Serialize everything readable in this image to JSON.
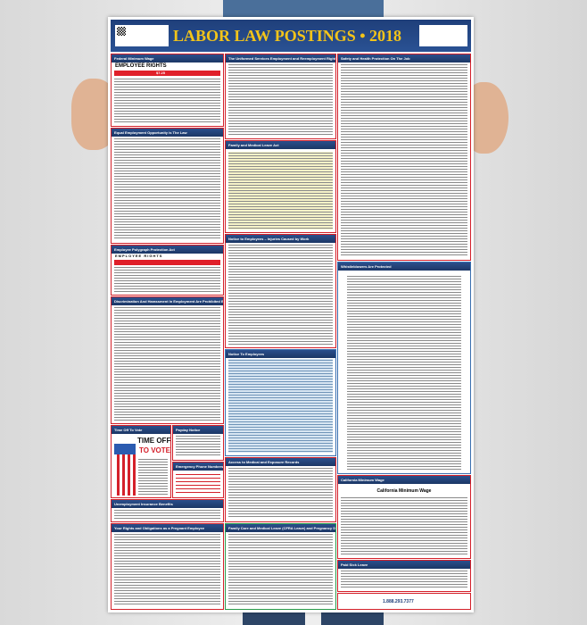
{
  "poster": {
    "title": "LABOR LAW POSTINGS • 2018",
    "sections": {
      "federal_min_wage": "Federal Minimum Wage",
      "employee_rights": "EMPLOYEE RIGHTS",
      "min_wage_value": "$7.25",
      "userra": "The Uniformed Services Employment and Reemployment Rights Act",
      "safety": "Safety and Health Protection On The Job",
      "eeo": "Equal Employment Opportunity is The Law",
      "fmla": "Family and Medical Leave Act",
      "polygraph": "Employee Polygraph Protection Act",
      "polygraph_rights": "EMPLOYEE RIGHTS",
      "injuries": "Notice to Employees – Injuries Caused by Work",
      "whistleblowers": "Whistleblowers Are Protected",
      "discrimination": "Discrimination And Harassment In Employment Are Prohibited By Law",
      "notice_employees": "Notice To Employees",
      "time_off_vote": "Time Off To Vote",
      "time_off_line1": "TIME OFF",
      "time_off_line2": "TO VOTE",
      "payday": "Payday Notice",
      "emergency": "Emergency Phone Numbers",
      "medical_records": "Access to Medical and Exposure Records",
      "unemployment": "Unemployment Insurance Benefits",
      "ca_min_wage": "California Minimum Wage",
      "ca_min_wage_heading": "California Minimum Wage",
      "pregnant": "Your Rights and Obligations as a Pregnant Employee",
      "cfra": "Family Care and Medical Leave (CFRA Leave) and Pregnancy Disability Leave",
      "paid_sick": "Paid Sick Leave"
    },
    "footer_phone": "1.888.293.7377"
  },
  "colors": {
    "header": "#1f3f7a",
    "title": "#f3c419",
    "border": "#d4202a"
  }
}
